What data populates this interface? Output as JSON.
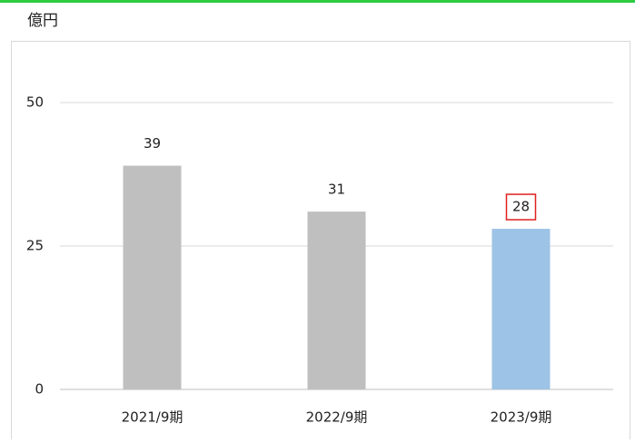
{
  "chart_data": {
    "type": "bar",
    "y_label": "億円",
    "categories": [
      "2021/9期",
      "2022/9期",
      "2023/9期"
    ],
    "values": [
      39,
      31,
      28
    ],
    "colors": [
      "#bfbfbf",
      "#bfbfbf",
      "#9dc3e6"
    ],
    "highlight": {
      "index": 2,
      "color": "#e02020"
    },
    "ylim": [
      0,
      50
    ],
    "yticks": [
      0,
      25,
      50
    ],
    "grid": true
  }
}
